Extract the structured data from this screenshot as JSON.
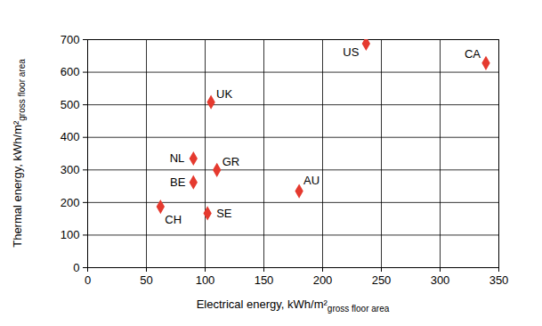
{
  "chart_data": {
    "type": "scatter",
    "x_label": "Electrical energy, kWh/m²gross floor area",
    "y_label": "Thermal energy, kWh/m²gross floor area",
    "categories": [
      "CH",
      "NL",
      "BE",
      "SE",
      "UK",
      "GR",
      "AU",
      "US",
      "CA"
    ],
    "x": [
      62,
      90,
      90,
      102,
      105,
      110,
      180,
      237,
      339
    ],
    "values": [
      187,
      335,
      262,
      167,
      508,
      300,
      235,
      688,
      628
    ],
    "color": "#e53a2f",
    "marker": "diamond",
    "xlim": [
      0,
      350
    ],
    "xticks": [
      0,
      50,
      100,
      150,
      200,
      250,
      300,
      350
    ],
    "ylim": [
      0,
      700
    ],
    "yticks": [
      0,
      100,
      200,
      300,
      400,
      500,
      600,
      700
    ],
    "grid": true
  }
}
